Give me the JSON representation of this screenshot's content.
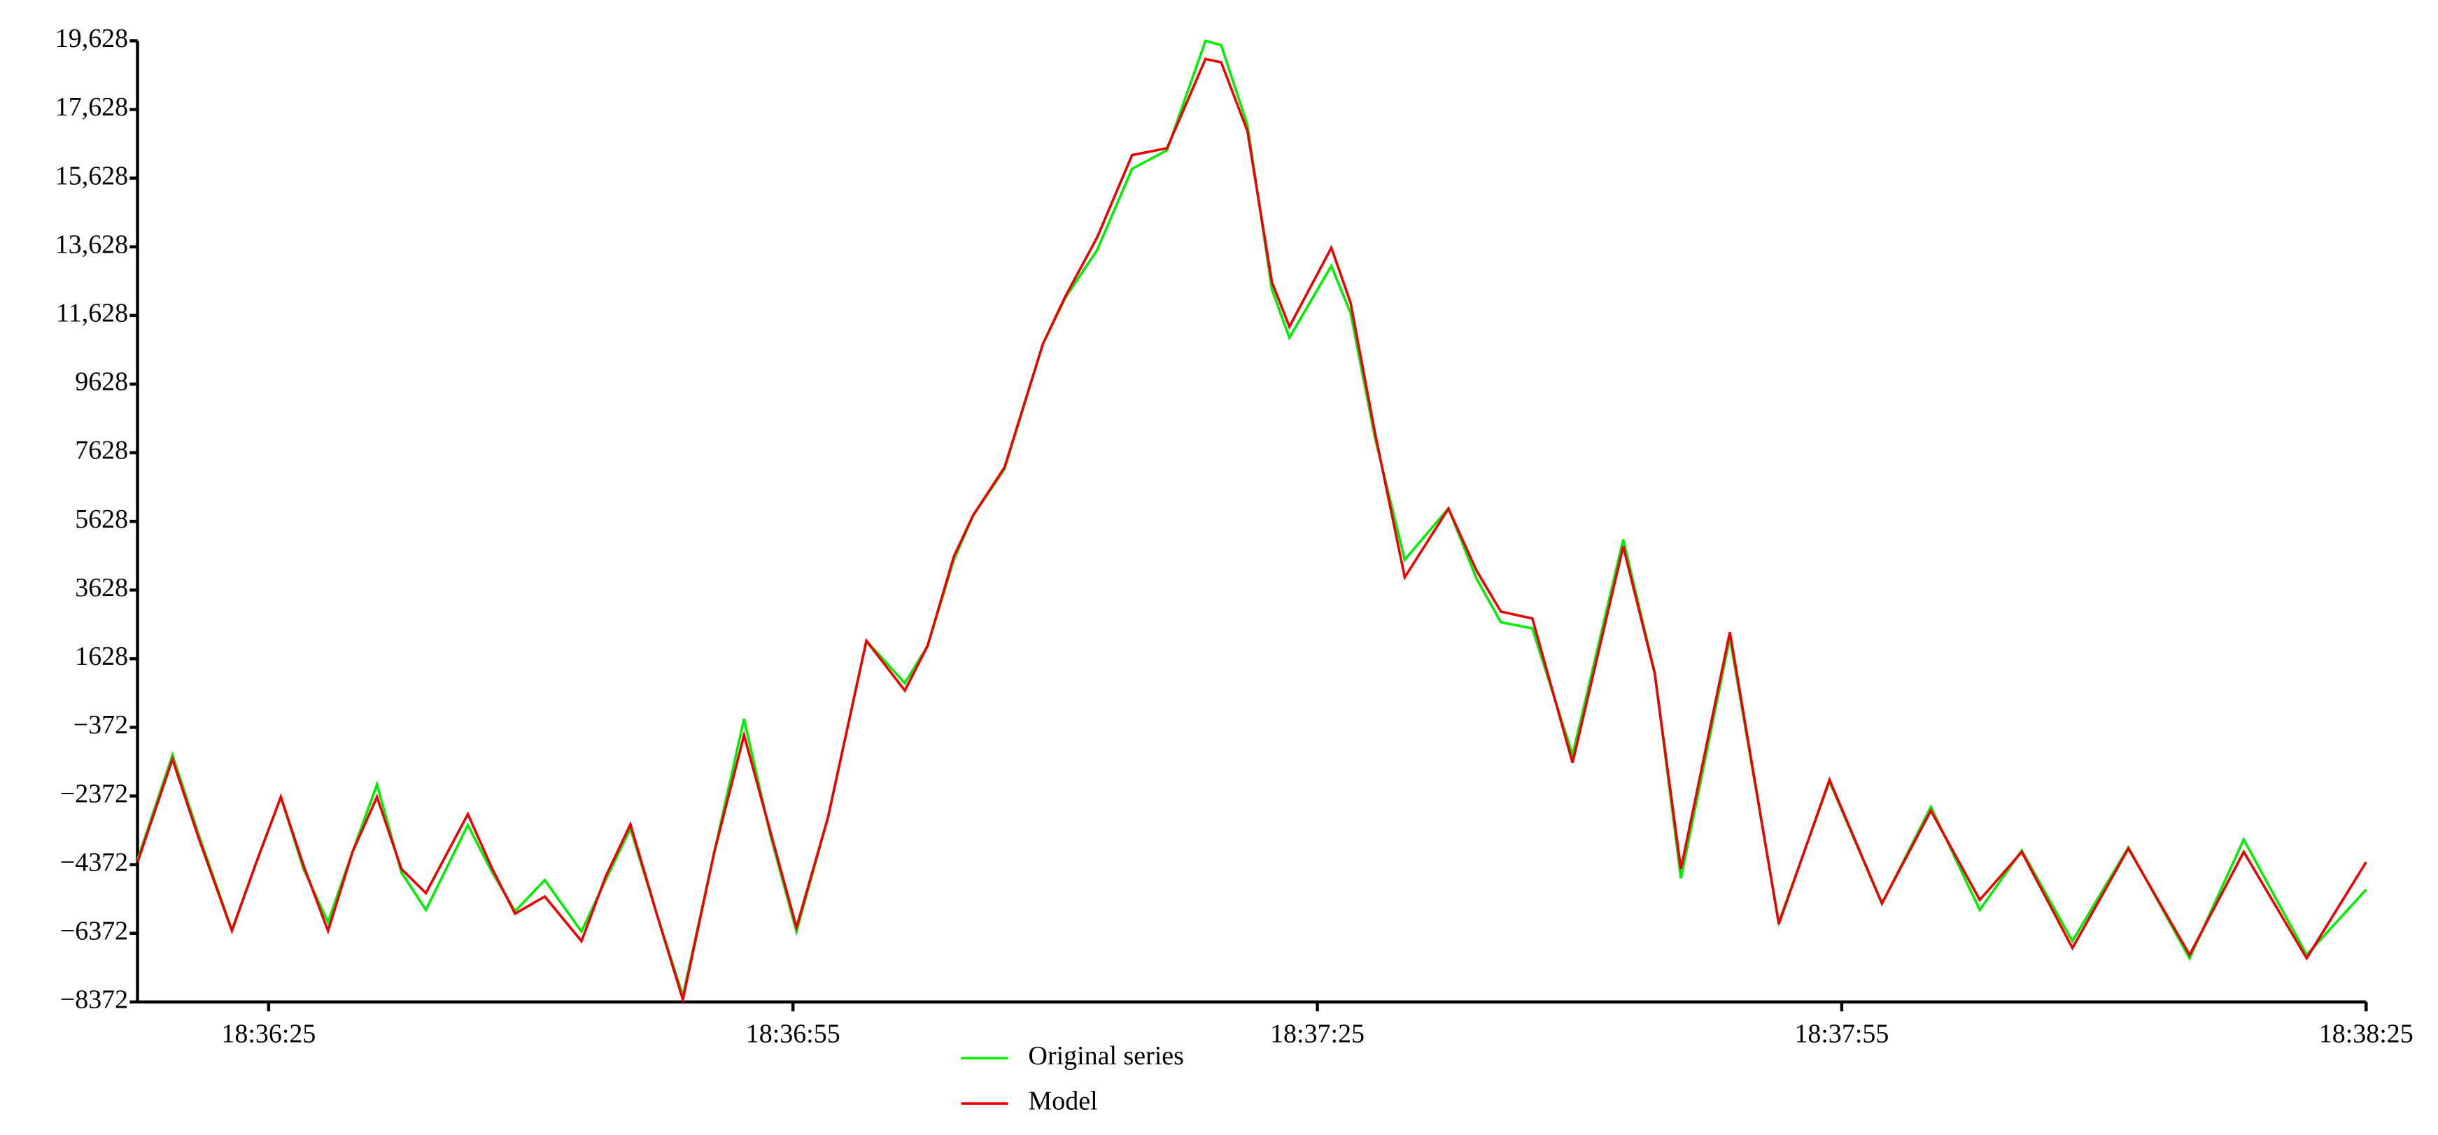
{
  "chart_data": {
    "type": "line",
    "x": [
      "18:36:17.5",
      "18:36:19.5",
      "18:36:21",
      "18:36:22.9",
      "18:36:24.3",
      "18:36:25.7",
      "18:36:27",
      "18:36:28.4",
      "18:36:29.8",
      "18:36:31.2",
      "18:36:32.6",
      "18:36:34",
      "18:36:36.4",
      "18:36:37.8",
      "18:36:39.1",
      "18:36:40.8",
      "18:36:42.9",
      "18:36:44.3",
      "18:36:45.7",
      "18:36:47.2",
      "18:36:48.7",
      "18:36:50.5",
      "18:36:52.2",
      "18:36:53.7",
      "18:36:55.2",
      "18:36:57",
      "18:36:59.2",
      "18:37:01.4",
      "18:37:02.7",
      "18:37:04.2",
      "18:37:05.3",
      "18:37:07.1",
      "18:37:09.3",
      "18:37:10.6",
      "18:37:12.4",
      "18:37:14.4",
      "18:37:16.4",
      "18:37:18.6",
      "18:37:19.5",
      "18:37:21",
      "18:37:22.4",
      "18:37:23.4",
      "18:37:25.8",
      "18:37:26.9",
      "18:37:28.3",
      "18:37:30",
      "18:37:32.5",
      "18:37:34.1",
      "18:37:35.5",
      "18:37:37.3",
      "18:37:39.6",
      "18:37:42.5",
      "18:37:44.3",
      "18:37:45.8",
      "18:37:48.6",
      "18:37:51.4",
      "18:37:54.3",
      "18:37:57.3",
      "18:38:00.1",
      "18:38:02.9",
      "18:38:05.3",
      "18:38:08.2",
      "18:38:11.4",
      "18:38:14.9",
      "18:38:18",
      "18:38:21.6",
      "18:38:25"
    ],
    "series": [
      {
        "name": "Original series",
        "color": "#00ee00",
        "values": [
          -4230,
          -1180,
          -3500,
          -6280,
          -4300,
          -2400,
          -4500,
          -6050,
          -4000,
          -2040,
          -4600,
          -5690,
          -3220,
          -4600,
          -5730,
          -4820,
          -6320,
          -4800,
          -3320,
          -5800,
          -8190,
          -4000,
          -130,
          -3500,
          -6320,
          -3000,
          2150,
          915,
          2000,
          4500,
          5790,
          7150,
          10800,
          12160,
          13530,
          15900,
          16440,
          19628,
          19500,
          17170,
          12390,
          10980,
          13070,
          11700,
          8060,
          4510,
          6010,
          3970,
          2690,
          2510,
          -1180,
          5100,
          1230,
          -4770,
          2240,
          -6050,
          -1950,
          -5510,
          -2690,
          -5690,
          -3960,
          -6600,
          -3870,
          -7100,
          -3640,
          -7000,
          -5100
        ]
      },
      {
        "name": "Model",
        "color": "#ee0000",
        "values": [
          -4300,
          -1300,
          -3600,
          -6300,
          -4300,
          -2400,
          -4400,
          -6300,
          -4000,
          -2400,
          -4500,
          -5200,
          -2900,
          -4500,
          -5800,
          -5300,
          -6600,
          -4700,
          -3200,
          -5800,
          -8300,
          -4000,
          -600,
          -3400,
          -6200,
          -3000,
          2150,
          700,
          2000,
          4600,
          5800,
          7200,
          10800,
          12200,
          13900,
          16300,
          16500,
          19100,
          19000,
          17000,
          12600,
          11300,
          13600,
          12000,
          8200,
          4000,
          6000,
          4200,
          3000,
          2800,
          -1400,
          4900,
          1200,
          -4500,
          2400,
          -6100,
          -1900,
          -5500,
          -2800,
          -5400,
          -4000,
          -6800,
          -3900,
          -7000,
          -4000,
          -7100,
          -4300
        ]
      }
    ],
    "xlim": [
      "18:36:17.5",
      "18:38:25"
    ],
    "xticks": [
      "18:36:25",
      "18:36:55",
      "18:37:25",
      "18:37:55",
      "18:38:25"
    ],
    "ylim": [
      -8372,
      19628
    ],
    "yticks": [
      {
        "value": 19628,
        "label": "19,628"
      },
      {
        "value": 17628,
        "label": "17,628"
      },
      {
        "value": 15628,
        "label": "15,628"
      },
      {
        "value": 13628,
        "label": "13,628"
      },
      {
        "value": 11628,
        "label": "11,628"
      },
      9628,
      7628,
      5628,
      3628,
      1628,
      {
        "value": -372,
        "label": "−372"
      },
      {
        "value": -2372,
        "label": "−2372"
      },
      {
        "value": -4372,
        "label": "−4372"
      },
      {
        "value": -6372,
        "label": "−6372"
      },
      {
        "value": -8372,
        "label": "−8372"
      }
    ]
  }
}
